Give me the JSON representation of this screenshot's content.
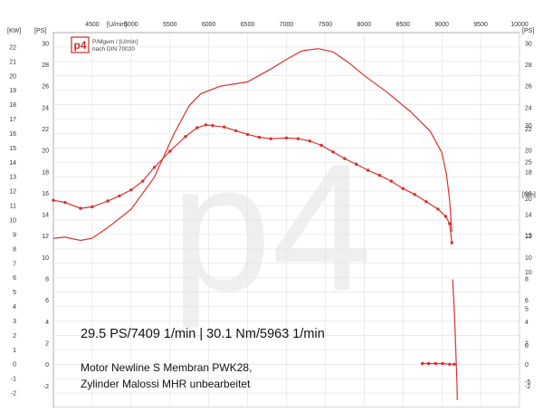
{
  "chart_data": {
    "type": "line",
    "x": {
      "label": "[U/min]",
      "range": [
        4000,
        10000
      ],
      "ticks": [
        4500,
        5000,
        5500,
        6000,
        6500,
        7000,
        7500,
        8000,
        8500,
        9000,
        9500,
        10000
      ]
    },
    "y_axes": {
      "kw": {
        "label": "[KW]",
        "range": [
          -3,
          23
        ],
        "ticks": [
          -2,
          -1,
          0,
          1,
          2,
          3,
          4,
          5,
          6,
          7,
          8,
          9,
          10,
          11,
          12,
          13,
          14,
          15,
          16,
          17,
          18,
          19,
          20,
          21,
          22
        ]
      },
      "ps": {
        "label": "[PS]",
        "range": [
          -4,
          31
        ],
        "ticks": [
          -2,
          0,
          2,
          4,
          6,
          8,
          10,
          12,
          14,
          16,
          18,
          20,
          22,
          24,
          26,
          28,
          30
        ]
      },
      "nm": {
        "label": "[Nm]",
        "range": [
          -8.5,
          42.7
        ],
        "ticks": [
          -5,
          0,
          5,
          10,
          15,
          20,
          25,
          30
        ]
      }
    },
    "watermark": "p4",
    "series": [
      {
        "color": "#d93030",
        "axis": "ps",
        "x": [
          4000,
          4150,
          4350,
          4500,
          4700,
          5000,
          5300,
          5550,
          5750,
          5900,
          6150,
          6500,
          6800,
          7000,
          7200,
          7409,
          7600,
          7800,
          8000,
          8300,
          8600,
          8850,
          9000,
          9060,
          9100,
          9130
        ],
        "y": [
          11.8,
          11.9,
          11.6,
          11.8,
          12.8,
          14.5,
          17.5,
          21.5,
          24.2,
          25.3,
          26.0,
          26.4,
          27.6,
          28.5,
          29.3,
          29.5,
          29.2,
          28.2,
          27.0,
          25.4,
          23.6,
          21.8,
          19.8,
          17.8,
          15.4,
          12.4
        ]
      },
      {
        "color": "#d93030",
        "axis": "nm",
        "x": [
          4000,
          4150,
          4350,
          4500,
          4700,
          4850,
          5000,
          5150,
          5300,
          5500,
          5700,
          5850,
          5963,
          6050,
          6200,
          6350,
          6500,
          6650,
          6800,
          7000,
          7150,
          7300,
          7450,
          7600,
          7750,
          7900,
          8050,
          8200,
          8350,
          8500,
          8650,
          8800,
          8950,
          9050,
          9100,
          9130
        ],
        "y": [
          19.8,
          19.5,
          18.7,
          18.9,
          19.7,
          20.4,
          21.2,
          22.4,
          24.3,
          26.5,
          28.5,
          29.7,
          30.1,
          30.0,
          29.8,
          29.3,
          28.8,
          28.4,
          28.2,
          28.3,
          28.2,
          27.9,
          27.3,
          26.4,
          25.5,
          24.7,
          23.9,
          23.2,
          22.4,
          21.4,
          20.6,
          19.6,
          18.6,
          17.6,
          16.6,
          14.0
        ]
      }
    ],
    "drop_line": {
      "color": "#d93030",
      "x": [
        9140,
        9160,
        9175,
        9185,
        9195,
        9200
      ],
      "y": [
        9.0,
        5.0,
        1.0,
        -2.0,
        -5.0,
        -7.5
      ],
      "axis": "nm"
    },
    "tail_segment": {
      "color": "#d93030",
      "axis": "nm",
      "x": [
        8750,
        8830,
        8920,
        9010,
        9100,
        9160
      ],
      "y": [
        -2.5,
        -2.5,
        -2.5,
        -2.5,
        -2.6,
        -2.6
      ]
    }
  },
  "logo": {
    "brand": "p4",
    "line1": "P/Mgem / [U/min]",
    "line2": "nach DIN 70020"
  },
  "headline": "29.5 PS/7409 1/min | 30.1 Nm/5963 1/min",
  "caption": {
    "line1": "Motor Newline S Membran PWK28,",
    "line2": "Zylinder Malossi MHR unbearbeitet"
  }
}
